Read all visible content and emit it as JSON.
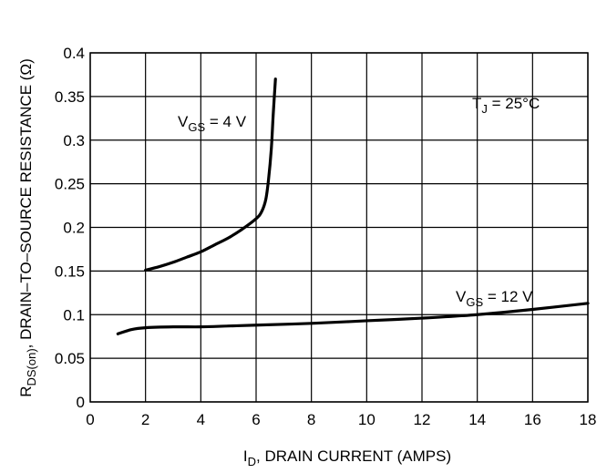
{
  "chart_data": {
    "type": "line",
    "xlabel": {
      "main": "I",
      "sub": "D",
      "rest": ", DRAIN CURRENT (AMPS)"
    },
    "ylabel": {
      "main": "R",
      "sub": "DS(on)",
      "rest": ", DRAIN–TO–SOURCE RESISTANCE (Ω)"
    },
    "xlim": [
      0,
      18
    ],
    "ylim": [
      0,
      0.4
    ],
    "x_ticks": [
      0,
      2,
      4,
      6,
      8,
      10,
      12,
      14,
      16,
      18
    ],
    "x_tick_labels": [
      "0",
      "2",
      "4",
      "6",
      "8",
      "10",
      "12",
      "14",
      "16",
      "18"
    ],
    "y_ticks": [
      0,
      0.05,
      0.1,
      0.15,
      0.2,
      0.25,
      0.3,
      0.35,
      0.4
    ],
    "y_tick_labels": [
      "0",
      "0.05",
      "0.1",
      "0.15",
      "0.2",
      "0.25",
      "0.3",
      "0.35",
      "0.4"
    ],
    "grid": true,
    "series": [
      {
        "label": {
          "main": "V",
          "sub": "GS",
          "rest": " = 4 V"
        },
        "x": [
          2,
          2.5,
          3,
          3.5,
          4,
          4.5,
          5,
          5.5,
          6,
          6.2,
          6.35,
          6.45,
          6.55,
          6.62,
          6.7
        ],
        "y": [
          0.151,
          0.155,
          0.16,
          0.166,
          0.172,
          0.18,
          0.188,
          0.198,
          0.21,
          0.218,
          0.232,
          0.255,
          0.29,
          0.33,
          0.37
        ]
      },
      {
        "label": {
          "main": "V",
          "sub": "GS",
          "rest": " = 12 V"
        },
        "x": [
          1,
          1.5,
          2,
          3,
          4,
          5,
          6,
          8,
          10,
          12,
          14,
          16,
          18
        ],
        "y": [
          0.078,
          0.083,
          0.085,
          0.086,
          0.086,
          0.087,
          0.088,
          0.09,
          0.093,
          0.096,
          0.1,
          0.106,
          0.113
        ]
      }
    ],
    "annotations": [
      {
        "main": "T",
        "sub": "J",
        "rest": " = 25°C"
      }
    ]
  }
}
